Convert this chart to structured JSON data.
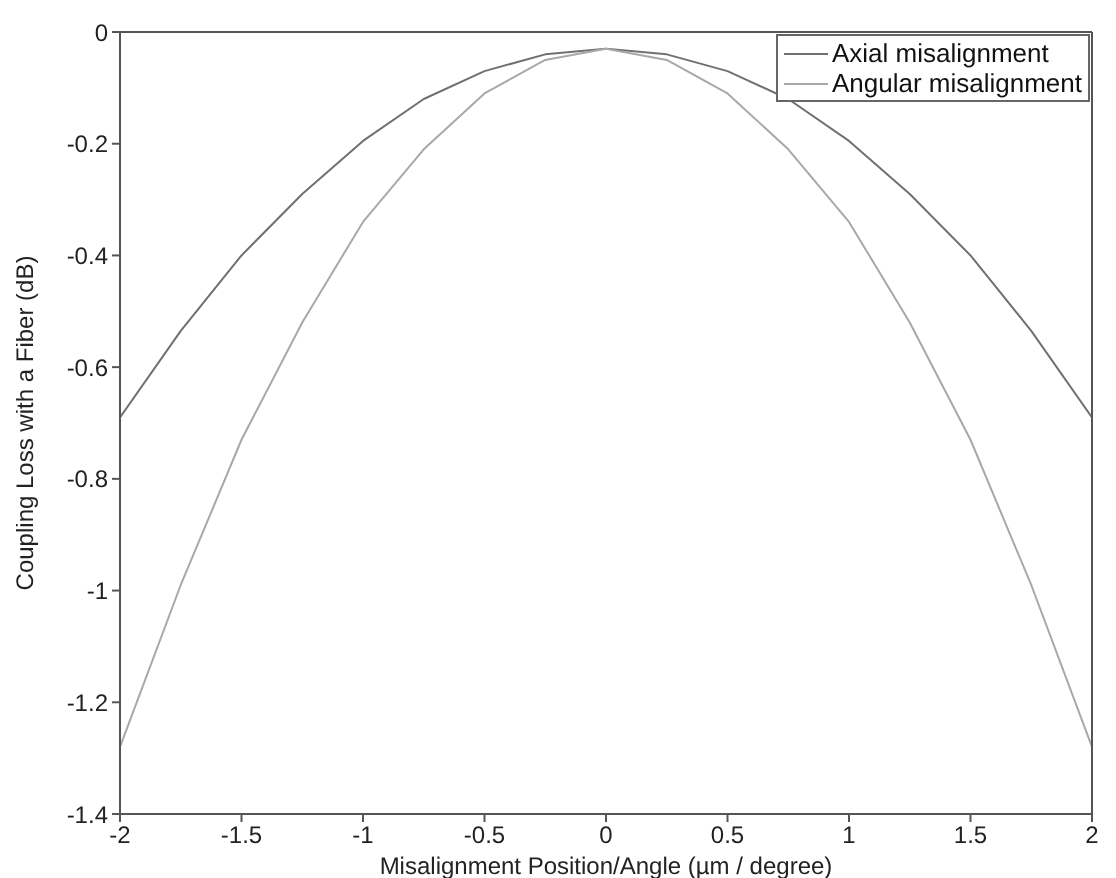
{
  "chart_data": {
    "type": "line",
    "xlabel": "Misalignment Position/Angle (µm / degree)",
    "ylabel": "Coupling Loss with a Fiber (dB)",
    "x": [
      -2,
      -1.75,
      -1.5,
      -1.25,
      -1,
      -0.75,
      -0.5,
      -0.25,
      0,
      0.25,
      0.5,
      0.75,
      1,
      1.25,
      1.5,
      1.75,
      2
    ],
    "series": [
      {
        "name": "Axial misalignment",
        "color": "#707070",
        "values": [
          -0.69,
          -0.535,
          -0.4,
          -0.29,
          -0.195,
          -0.12,
          -0.07,
          -0.04,
          -0.03,
          -0.04,
          -0.07,
          -0.12,
          -0.195,
          -0.29,
          -0.4,
          -0.535,
          -0.69
        ]
      },
      {
        "name": "Angular misalignment",
        "color": "#a8a8a8",
        "values": [
          -1.28,
          -0.99,
          -0.73,
          -0.52,
          -0.34,
          -0.21,
          -0.11,
          -0.05,
          -0.03,
          -0.05,
          -0.11,
          -0.21,
          -0.34,
          -0.52,
          -0.73,
          -0.99,
          -1.28
        ]
      }
    ],
    "xlim": [
      -2,
      2
    ],
    "xticks": [
      -2,
      -1.5,
      -1,
      -0.5,
      0,
      0.5,
      1,
      1.5,
      2
    ],
    "ylim": [
      -1.4,
      0
    ],
    "yticks": [
      -1.4,
      -1.2,
      -1,
      -0.8,
      -0.6,
      -0.4,
      -0.2,
      0
    ],
    "grid": false,
    "legend": "top right",
    "marker": "none",
    "line_style": "solid"
  }
}
